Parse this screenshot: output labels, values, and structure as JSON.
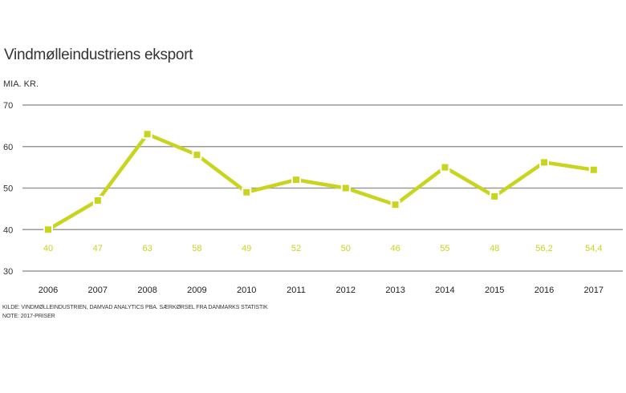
{
  "chart_data": {
    "type": "line",
    "title": "Vindmølleindustriens eksport",
    "ylabel": "MIA. KR.",
    "xlabel": "",
    "categories": [
      "2006",
      "2007",
      "2008",
      "2009",
      "2010",
      "2011",
      "2012",
      "2013",
      "2014",
      "2015",
      "2016",
      "2017"
    ],
    "values": [
      40,
      47,
      63,
      58,
      49,
      52,
      50,
      46,
      55,
      48,
      56.2,
      54.4
    ],
    "data_labels": [
      "40",
      "47",
      "63",
      "58",
      "49",
      "52",
      "50",
      "46",
      "55",
      "48",
      "56,2",
      "54,4"
    ],
    "ylim": [
      30,
      70
    ],
    "yticks": [
      30,
      40,
      50,
      60,
      70
    ],
    "grid": true,
    "line_color": "#c8d41e",
    "grid_color": "#9a9a9a",
    "source": "KILDE: VINDMØLLEINDUSTRIEN, DAMVAD ANALYTICS PBA. SÆRKØRSEL FRA DANMARKS STATISTIK",
    "note": "NOTE: 2017-PRISER"
  }
}
